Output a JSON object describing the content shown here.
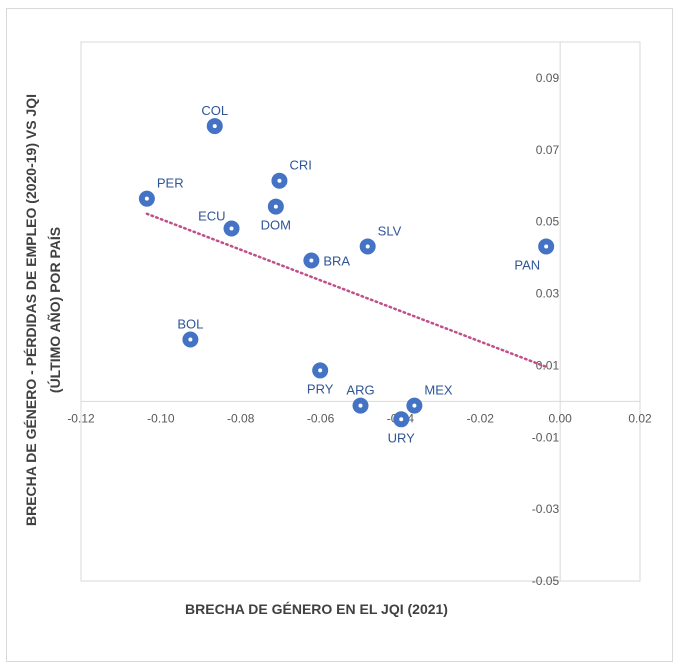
{
  "chart_data": {
    "type": "scatter",
    "title": "",
    "xlabel": "BRECHA DE GÉNERO EN EL JQI (2021)",
    "ylabel_line1": "BRECHA DE GÉNERO - PÉRDIDAS DE EMPLEO (2020-19) VS JQI",
    "ylabel_line2": "(ÚLTIMO AÑO) POR PAÍS",
    "xlim": [
      -0.12,
      0.02
    ],
    "ylim": [
      -0.05,
      0.1
    ],
    "x_ticks": [
      -0.12,
      -0.1,
      -0.08,
      -0.06,
      -0.04,
      -0.02,
      0.0,
      0.02
    ],
    "x_tick_labels": [
      "-0.12",
      "-0.10",
      "-0.08",
      "-0.06",
      "-0.04",
      "-0.02",
      "0.00",
      "0.02"
    ],
    "y_ticks": [
      0.09,
      0.07,
      0.05,
      0.03,
      0.01,
      -0.01,
      -0.03,
      -0.05
    ],
    "y_tick_labels": [
      "0.09",
      "0.07",
      "0.05",
      "0.03",
      "0.01",
      "-0.01",
      "-0.03",
      "-0.05"
    ],
    "grid": false,
    "trendline": {
      "style": "dotted",
      "x": [
        -0.1035,
        -0.0035
      ],
      "y": [
        0.0522,
        0.0096
      ]
    },
    "points": [
      {
        "label": "COL",
        "x": -0.0865,
        "y": 0.0766,
        "label_pos": "above"
      },
      {
        "label": "CRI",
        "x": -0.0703,
        "y": 0.0614,
        "label_pos": "above-right"
      },
      {
        "label": "PER",
        "x": -0.1035,
        "y": 0.0564,
        "label_pos": "above-right"
      },
      {
        "label": "DOM",
        "x": -0.0712,
        "y": 0.0542,
        "label_pos": "below"
      },
      {
        "label": "ECU",
        "x": -0.0823,
        "y": 0.0481,
        "label_pos": "above-left"
      },
      {
        "label": "SLV",
        "x": -0.0482,
        "y": 0.0431,
        "label_pos": "above-right"
      },
      {
        "label": "PAN",
        "x": -0.0035,
        "y": 0.0431,
        "label_pos": "below-left"
      },
      {
        "label": "BRA",
        "x": -0.0623,
        "y": 0.0392,
        "label_pos": "right"
      },
      {
        "label": "BOL",
        "x": -0.0926,
        "y": 0.0172,
        "label_pos": "above"
      },
      {
        "label": "PRY",
        "x": -0.0601,
        "y": 0.0086,
        "label_pos": "below"
      },
      {
        "label": "ARG",
        "x": -0.05,
        "y": -0.0012,
        "label_pos": "above"
      },
      {
        "label": "MEX",
        "x": -0.0365,
        "y": -0.0012,
        "label_pos": "above-right"
      },
      {
        "label": "URY",
        "x": -0.0398,
        "y": -0.005,
        "label_pos": "below"
      }
    ],
    "colors": {
      "marker": "#4472c4",
      "marker_center": "#ffffff",
      "label": "#2f5597",
      "trendline": "#c0508a",
      "axis": "#d9d9d9"
    }
  }
}
